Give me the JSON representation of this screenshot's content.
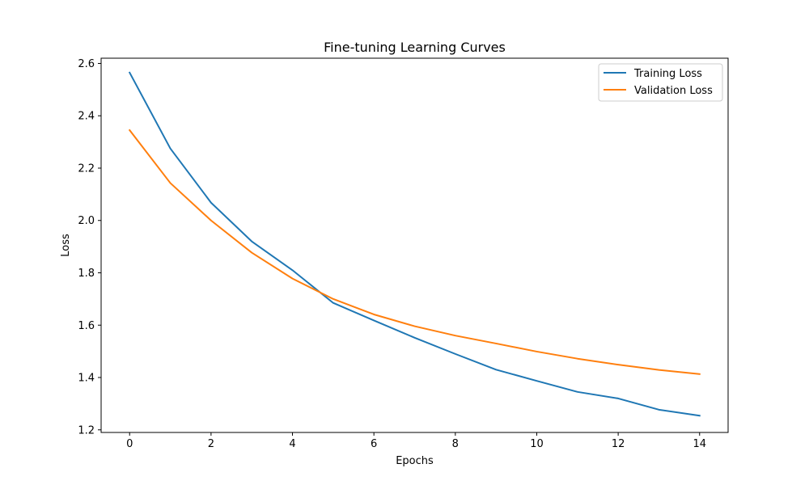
{
  "chart_data": {
    "type": "line",
    "title": "Fine-tuning Learning Curves",
    "xlabel": "Epochs",
    "ylabel": "Loss",
    "xlim": [
      -0.7,
      14.7
    ],
    "ylim": [
      1.19,
      2.62
    ],
    "xticks": [
      0,
      2,
      4,
      6,
      8,
      10,
      12,
      14
    ],
    "yticks": [
      1.2,
      1.4,
      1.6,
      1.8,
      2.0,
      2.2,
      2.4,
      2.6
    ],
    "xtick_labels": [
      "0",
      "2",
      "4",
      "6",
      "8",
      "10",
      "12",
      "14"
    ],
    "ytick_labels": [
      "1.2",
      "1.4",
      "1.6",
      "1.8",
      "2.0",
      "2.2",
      "2.4",
      "2.6"
    ],
    "grid": false,
    "legend_position": "top-right",
    "x": [
      0,
      1,
      2,
      3,
      4,
      5,
      6,
      7,
      8,
      9,
      10,
      11,
      12,
      13,
      14
    ],
    "series": [
      {
        "name": "Training Loss",
        "color": "#1f77b4",
        "values": [
          2.565,
          2.275,
          2.068,
          1.92,
          1.81,
          1.685,
          1.618,
          1.552,
          1.49,
          1.43,
          1.387,
          1.345,
          1.32,
          1.277,
          1.254
        ]
      },
      {
        "name": "Validation Loss",
        "color": "#ff7f0e",
        "values": [
          2.345,
          2.143,
          2.0,
          1.877,
          1.778,
          1.7,
          1.641,
          1.596,
          1.56,
          1.53,
          1.499,
          1.472,
          1.449,
          1.429,
          1.413
        ]
      }
    ]
  }
}
